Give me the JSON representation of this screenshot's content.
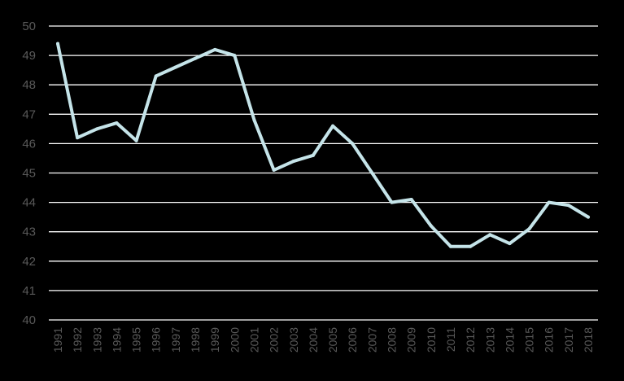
{
  "chart_data": {
    "type": "line",
    "title": "",
    "xlabel": "",
    "ylabel": "",
    "grid": true,
    "legend": "none",
    "ylim": [
      40,
      50
    ],
    "yticks": [
      40,
      41,
      42,
      43,
      44,
      45,
      46,
      47,
      48,
      49,
      50
    ],
    "categories": [
      "1991",
      "1992",
      "1993",
      "1994",
      "1995",
      "1996",
      "1997",
      "1998",
      "1999",
      "2000",
      "2001",
      "2002",
      "2003",
      "2004",
      "2005",
      "2006",
      "2007",
      "2008",
      "2009",
      "2010",
      "2011",
      "2012",
      "2013",
      "2014",
      "2015",
      "2016",
      "2017",
      "2018"
    ],
    "series": [
      {
        "values": [
          49.4,
          46.2,
          46.5,
          46.7,
          46.1,
          48.3,
          48.6,
          48.9,
          49.2,
          49.0,
          46.8,
          45.1,
          45.4,
          45.6,
          46.6,
          46.0,
          45.0,
          44.0,
          44.1,
          43.2,
          42.5,
          42.5,
          42.9,
          42.6,
          43.1,
          44.0,
          43.9,
          43.5
        ]
      }
    ],
    "colors": {
      "background": "#000000",
      "line": "#c5e4e9",
      "grid": "#ffffff",
      "tick_text": "#595959"
    }
  }
}
